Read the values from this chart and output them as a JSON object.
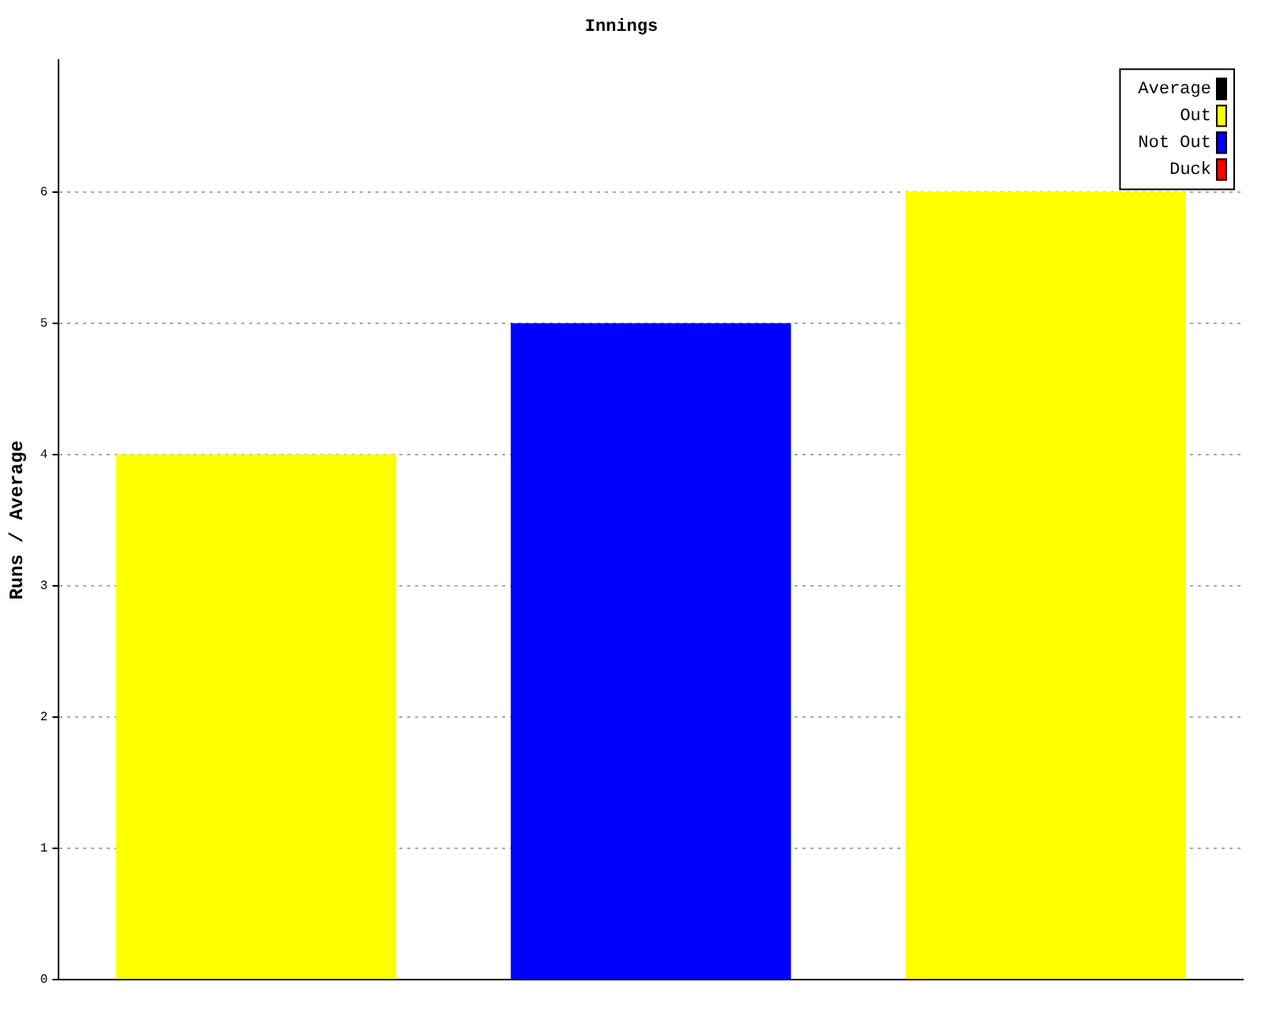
{
  "chart_data": {
    "type": "bar",
    "title": "Innings",
    "ylabel": "Runs / Average",
    "categories": [
      null,
      null,
      null
    ],
    "series": [
      {
        "name": "Average",
        "color": "#000000",
        "values": [
          null,
          null,
          null
        ]
      },
      {
        "name": "Out",
        "color": "#ffff00",
        "values": [
          4,
          null,
          6
        ]
      },
      {
        "name": "Not Out",
        "color": "#0000ff",
        "values": [
          null,
          5,
          null
        ]
      },
      {
        "name": "Duck",
        "color": "#ff0000",
        "values": [
          null,
          null,
          null
        ]
      }
    ],
    "ylim": [
      0,
      7
    ],
    "yticks": [
      0,
      1,
      2,
      3,
      4,
      5,
      6
    ],
    "grid": "y",
    "legend": "top right"
  }
}
